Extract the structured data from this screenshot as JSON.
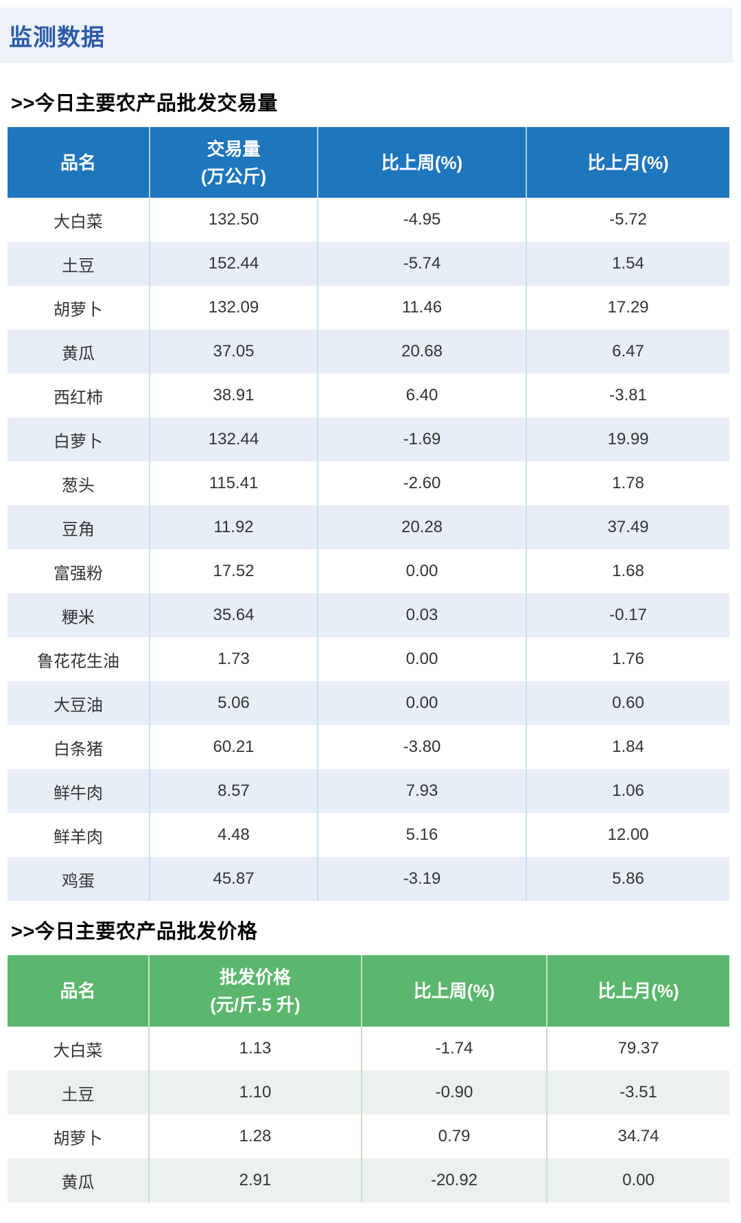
{
  "page": {
    "header_title": "监测数据"
  },
  "sections": [
    {
      "title": ">>今日主要农产品批发交易量",
      "accent_color": "#1e76bd",
      "stripe_color": "#e7eef7",
      "separator_color": "#cadff0",
      "table": {
        "headers": [
          {
            "label": "品名"
          },
          {
            "label": "交易量",
            "sub": "(万公斤)"
          },
          {
            "label": "比上周(%)"
          },
          {
            "label": "比上月(%)"
          }
        ],
        "rows": [
          [
            "大白菜",
            "132.50",
            "-4.95",
            "-5.72"
          ],
          [
            "土豆",
            "152.44",
            "-5.74",
            "1.54"
          ],
          [
            "胡萝卜",
            "132.09",
            "11.46",
            "17.29"
          ],
          [
            "黄瓜",
            "37.05",
            "20.68",
            "6.47"
          ],
          [
            "西红柿",
            "38.91",
            "6.40",
            "-3.81"
          ],
          [
            "白萝卜",
            "132.44",
            "-1.69",
            "19.99"
          ],
          [
            "葱头",
            "115.41",
            "-2.60",
            "1.78"
          ],
          [
            "豆角",
            "11.92",
            "20.28",
            "37.49"
          ],
          [
            "富强粉",
            "17.52",
            "0.00",
            "1.68"
          ],
          [
            "粳米",
            "35.64",
            "0.03",
            "-0.17"
          ],
          [
            "鲁花花生油",
            "1.73",
            "0.00",
            "1.76"
          ],
          [
            "大豆油",
            "5.06",
            "0.00",
            "0.60"
          ],
          [
            "白条猪",
            "60.21",
            "-3.80",
            "1.84"
          ],
          [
            "鲜牛肉",
            "8.57",
            "7.93",
            "1.06"
          ],
          [
            "鲜羊肉",
            "4.48",
            "5.16",
            "12.00"
          ],
          [
            "鸡蛋",
            "45.87",
            "-3.19",
            "5.86"
          ]
        ]
      }
    },
    {
      "title": ">>今日主要农产品批发价格",
      "accent_color": "#5bb76d",
      "stripe_color": "#ebf1ec",
      "separator_color": "#c8dfca",
      "table": {
        "headers": [
          {
            "label": "品名"
          },
          {
            "label": "批发价格",
            "sub": "(元/斤.5 升)"
          },
          {
            "label": "比上周(%)"
          },
          {
            "label": "比上月(%)"
          }
        ],
        "rows": [
          [
            "大白菜",
            "1.13",
            "-1.74",
            "79.37"
          ],
          [
            "土豆",
            "1.10",
            "-0.90",
            "-3.51"
          ],
          [
            "胡萝卜",
            "1.28",
            "0.79",
            "34.74"
          ],
          [
            "黄瓜",
            "2.91",
            "-20.92",
            "0.00"
          ]
        ]
      }
    }
  ]
}
